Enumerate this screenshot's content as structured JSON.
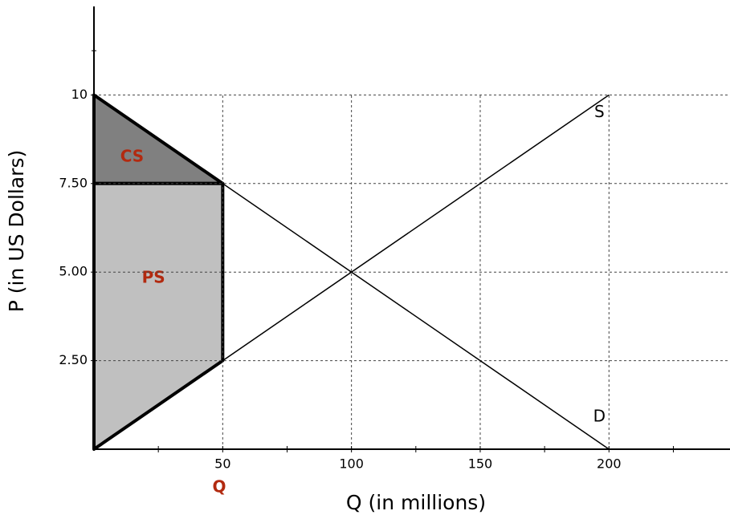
{
  "chart_data": {
    "type": "line",
    "x_label": "Q (in millions)",
    "y_label": "P (in US Dollars)",
    "xlim": [
      0,
      247
    ],
    "ylim": [
      0,
      12.5
    ],
    "xticks": [
      50,
      100,
      150,
      200
    ],
    "xticks_minor": [
      25,
      75,
      125,
      175,
      225
    ],
    "yticks": [
      {
        "value": 2.5,
        "label": "2.50"
      },
      {
        "value": 5,
        "label": "5.00"
      },
      {
        "value": 7.5,
        "label": "7.50"
      },
      {
        "value": 10,
        "label": "10"
      }
    ],
    "yticks_minor": [
      11.25
    ],
    "grid": true,
    "series": [
      {
        "name": "S",
        "color": "#000000",
        "x": [
          0,
          200
        ],
        "values": [
          0,
          10
        ]
      },
      {
        "name": "D",
        "color": "#000000",
        "x": [
          0,
          200
        ],
        "values": [
          10,
          0
        ]
      }
    ],
    "regions": [
      {
        "name": "CS",
        "color": "#808080",
        "x": [
          0,
          50,
          0
        ],
        "values": [
          10,
          7.5,
          7.5
        ]
      },
      {
        "name": "PS",
        "color": "#c0c0c0",
        "x": [
          0,
          50,
          50,
          0
        ],
        "values": [
          7.5,
          7.5,
          2.5,
          0
        ]
      }
    ],
    "quantity_label": "Q"
  }
}
